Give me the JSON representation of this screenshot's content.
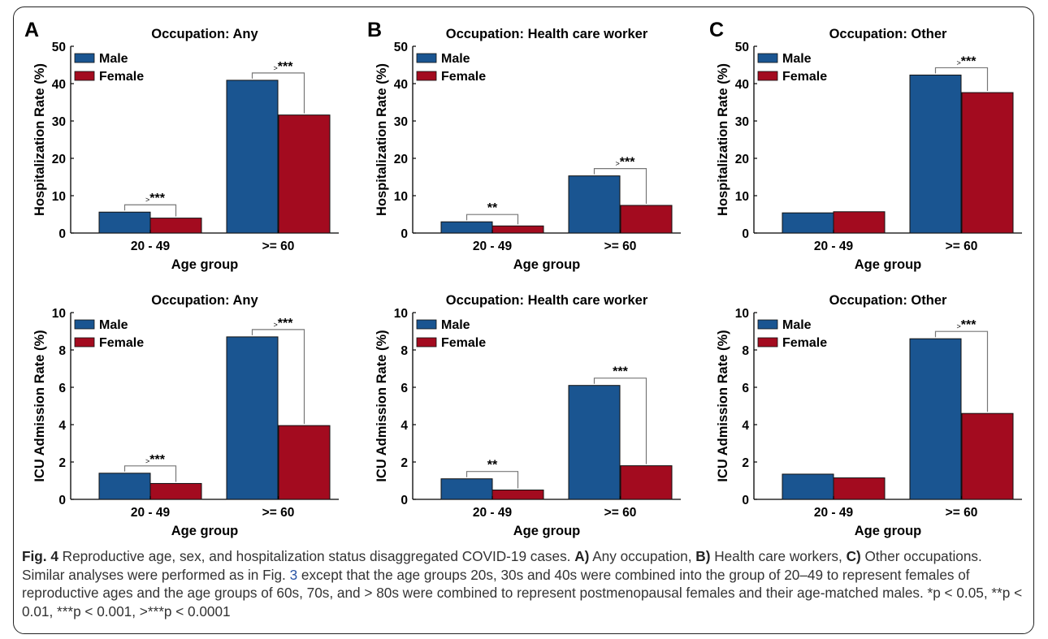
{
  "figure": {
    "panels": [
      {
        "letter": "A",
        "occupation": "Any"
      },
      {
        "letter": "B",
        "occupation": "Health care worker"
      },
      {
        "letter": "C",
        "occupation": "Other"
      }
    ]
  },
  "caption": {
    "label": "Fig. 4",
    "text": " Reproductive age, sex, and hospitalization status disaggregated COVID-19 cases. ",
    "a_label": "A)",
    "a_text": " Any occupation, ",
    "b_label": "B)",
    "b_text": " Health care workers, ",
    "c_label": "C)",
    "c_text": " Other occupations. Similar analyses were performed as in Fig. ",
    "fig_ref": "3",
    "rest": " except that the age groups 20s, 30s and 40s were combined into the group of 20–49 to represent females of reproductive ages and the age groups of 60s, 70s, and > 80s were combined to represent postmenopausal females and their age-matched males. *p < 0.05, **p < 0.01, ***p < 0.001, >***p < 0.0001"
  },
  "colors": {
    "male": "#1a5591",
    "female": "#a30b1f",
    "axis": "#000000",
    "bracket": "#777777"
  },
  "chart_data": [
    {
      "type": "bar",
      "panel": "A",
      "row": "top",
      "title": "Occupation: Any",
      "xlabel": "Age group",
      "ylabel": "Hospitalization Rate (%)",
      "ylim": [
        0,
        50
      ],
      "yticks": [
        0,
        10,
        20,
        30,
        40,
        50
      ],
      "categories": [
        "20 - 49",
        ">= 60"
      ],
      "series": [
        {
          "name": "Male",
          "values": [
            5.6,
            40.9
          ]
        },
        {
          "name": "Female",
          "values": [
            4.0,
            31.6
          ]
        }
      ],
      "significance": [
        ">***",
        ">***"
      ],
      "legend": "top-left"
    },
    {
      "type": "bar",
      "panel": "A",
      "row": "bottom",
      "title": "Occupation: Any",
      "xlabel": "Age group",
      "ylabel": "ICU Admission Rate (%)",
      "ylim": [
        0,
        10
      ],
      "yticks": [
        0,
        2,
        4,
        6,
        8,
        10
      ],
      "categories": [
        "20 - 49",
        ">= 60"
      ],
      "series": [
        {
          "name": "Male",
          "values": [
            1.4,
            8.7
          ]
        },
        {
          "name": "Female",
          "values": [
            0.85,
            3.95
          ]
        }
      ],
      "significance": [
        ">***",
        ">***"
      ],
      "legend": "top-left"
    },
    {
      "type": "bar",
      "panel": "B",
      "row": "top",
      "title": "Occupation: Health care worker",
      "xlabel": "Age group",
      "ylabel": "Hospitalization Rate (%)",
      "ylim": [
        0,
        50
      ],
      "yticks": [
        0,
        10,
        20,
        30,
        40,
        50
      ],
      "categories": [
        "20 - 49",
        ">= 60"
      ],
      "series": [
        {
          "name": "Male",
          "values": [
            3.0,
            15.3
          ]
        },
        {
          "name": "Female",
          "values": [
            1.9,
            7.4
          ]
        }
      ],
      "significance": [
        "**",
        ">***"
      ],
      "legend": "top-left"
    },
    {
      "type": "bar",
      "panel": "B",
      "row": "bottom",
      "title": "Occupation: Health care worker",
      "xlabel": "Age group",
      "ylabel": "ICU Admission Rate (%)",
      "ylim": [
        0,
        10
      ],
      "yticks": [
        0,
        2,
        4,
        6,
        8,
        10
      ],
      "categories": [
        "20 - 49",
        ">= 60"
      ],
      "series": [
        {
          "name": "Male",
          "values": [
            1.1,
            6.1
          ]
        },
        {
          "name": "Female",
          "values": [
            0.5,
            1.8
          ]
        }
      ],
      "significance": [
        "**",
        "***"
      ],
      "legend": "top-left"
    },
    {
      "type": "bar",
      "panel": "C",
      "row": "top",
      "title": "Occupation: Other",
      "xlabel": "Age group",
      "ylabel": "Hospitalization Rate (%)",
      "ylim": [
        0,
        50
      ],
      "yticks": [
        0,
        10,
        20,
        30,
        40,
        50
      ],
      "categories": [
        "20 - 49",
        ">= 60"
      ],
      "series": [
        {
          "name": "Male",
          "values": [
            5.4,
            42.3
          ]
        },
        {
          "name": "Female",
          "values": [
            5.7,
            37.6
          ]
        }
      ],
      "significance": [
        "",
        ">***"
      ],
      "legend": "top-left"
    },
    {
      "type": "bar",
      "panel": "C",
      "row": "bottom",
      "title": "Occupation: Other",
      "xlabel": "Age group",
      "ylabel": "ICU Admission Rate (%)",
      "ylim": [
        0,
        10
      ],
      "yticks": [
        0,
        2,
        4,
        6,
        8,
        10
      ],
      "categories": [
        "20 - 49",
        ">= 60"
      ],
      "series": [
        {
          "name": "Male",
          "values": [
            1.35,
            8.6
          ]
        },
        {
          "name": "Female",
          "values": [
            1.15,
            4.6
          ]
        }
      ],
      "significance": [
        "",
        ">***"
      ],
      "legend": "top-left"
    }
  ]
}
